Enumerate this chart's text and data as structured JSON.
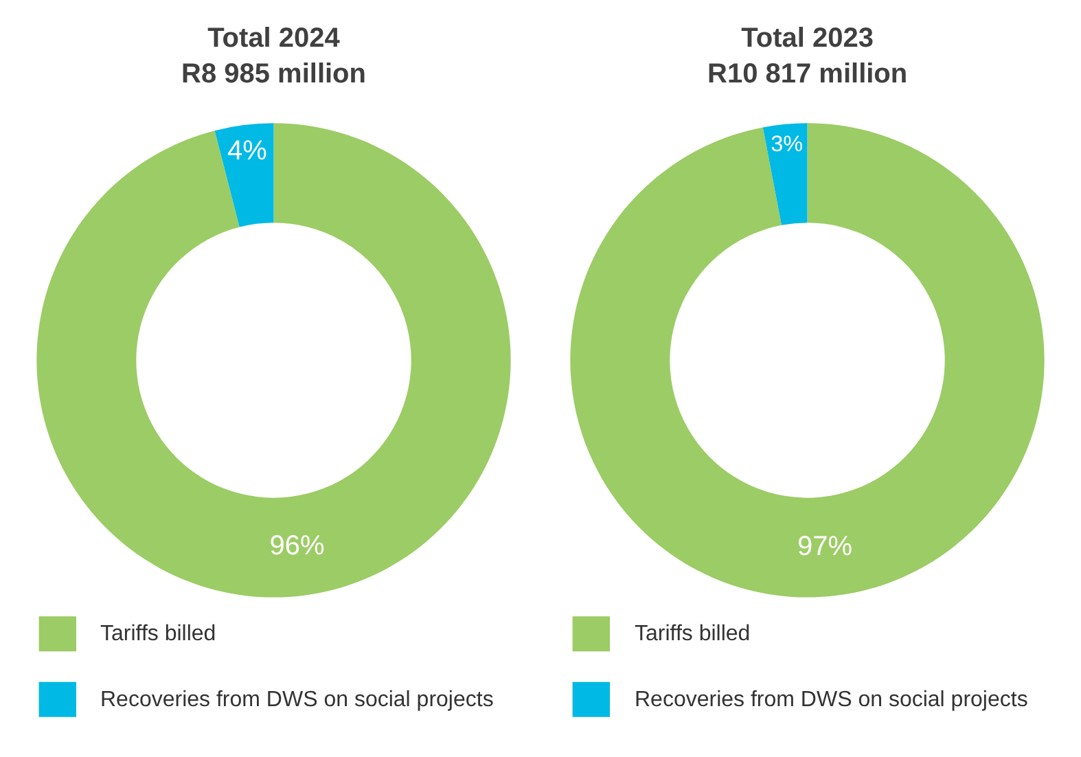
{
  "chart_data": [
    {
      "type": "donut",
      "title": "Total 2024",
      "subtitle": "R8 985 million",
      "categories": [
        "Tariffs billed",
        "Recoveries from DWS on social projects"
      ],
      "values": [
        96,
        4
      ],
      "value_labels": [
        "96%",
        "4%"
      ],
      "colors": [
        "#9ccc65",
        "#00b9e4"
      ],
      "legend": "bottom"
    },
    {
      "type": "donut",
      "title": "Total 2023",
      "subtitle": "R10 817 million",
      "categories": [
        "Tariffs billed",
        "Recoveries from DWS on social projects"
      ],
      "values": [
        97,
        3
      ],
      "value_labels": [
        "97%",
        "3%"
      ],
      "colors": [
        "#9ccc65",
        "#00b9e4"
      ],
      "legend": "bottom"
    }
  ]
}
